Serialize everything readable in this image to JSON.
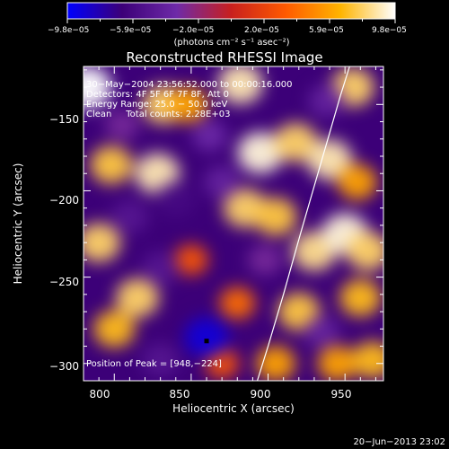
{
  "chart_data": {
    "type": "heatmap",
    "title": "Reconstructed RHESSI Image",
    "xlabel": "Heliocentric X (arcsec)",
    "ylabel": "Heliocentric Y (arcsec)",
    "xlim": [
      780,
      975
    ],
    "ylim": [
      -310,
      -128
    ],
    "x_ticks": [
      800,
      850,
      900,
      950
    ],
    "y_ticks": [
      -150,
      -200,
      -250,
      -300
    ],
    "x_tick_labels": [
      "800",
      "850",
      "900",
      "950"
    ],
    "y_tick_labels": [
      "−150",
      "−200",
      "−250",
      "−300"
    ],
    "colorbar": {
      "range": [
        -9.8e-05,
        9.8e-05
      ],
      "tick_labels": [
        "−9.8e−05",
        "−5.9e−05",
        "−2.0e−05",
        "2.0e−05",
        "5.9e−05",
        "9.8e−05"
      ],
      "unit_label": "(photons cm⁻² s⁻¹ asec⁻²)",
      "colors": [
        "#0000ff",
        "#3c0078",
        "#6e2aa8",
        "#c8201e",
        "#ff5a00",
        "#ffb400",
        "#ffffff"
      ]
    },
    "annotations": [
      "30−May−2004 23:56:52.000 to 00:00:16.000",
      "Detectors: 4F 5F 6F 7F 8F, Att 0",
      "Energy Range: 25.0 − 50.0 keV",
      "Clean     Total counts: 2.28E+03"
    ],
    "peak_label": "Position of Peak = [948,−224]",
    "peak": [
      948,
      -224
    ],
    "marker_point": [
      860,
      -287
    ],
    "limb_curve": [
      [
        893,
        -310
      ],
      [
        900,
        -290
      ],
      [
        910,
        -260
      ],
      [
        921,
        -225
      ],
      [
        934,
        -185
      ],
      [
        947,
        -145
      ],
      [
        953,
        -128
      ]
    ],
    "blobs": [
      {
        "x": 783,
        "y": -140,
        "v": 1.0
      },
      {
        "x": 798,
        "y": -185,
        "v": 0.75
      },
      {
        "x": 790,
        "y": -230,
        "v": 0.8
      },
      {
        "x": 800,
        "y": -280,
        "v": 0.7
      },
      {
        "x": 815,
        "y": -262,
        "v": 0.8
      },
      {
        "x": 828,
        "y": -190,
        "v": 0.9
      },
      {
        "x": 832,
        "y": -150,
        "v": 0.8
      },
      {
        "x": 850,
        "y": -240,
        "v": 0.3
      },
      {
        "x": 848,
        "y": -150,
        "v": 0.6
      },
      {
        "x": 882,
        "y": -138,
        "v": 0.9
      },
      {
        "x": 895,
        "y": -178,
        "v": 0.95
      },
      {
        "x": 885,
        "y": -210,
        "v": 0.8
      },
      {
        "x": 905,
        "y": -215,
        "v": 0.75
      },
      {
        "x": 918,
        "y": -172,
        "v": 0.8
      },
      {
        "x": 940,
        "y": -182,
        "v": 0.9
      },
      {
        "x": 930,
        "y": -235,
        "v": 0.85
      },
      {
        "x": 950,
        "y": -225,
        "v": 0.95
      },
      {
        "x": 965,
        "y": -235,
        "v": 0.8
      },
      {
        "x": 958,
        "y": -195,
        "v": 0.6
      },
      {
        "x": 955,
        "y": -140,
        "v": 0.8
      },
      {
        "x": 960,
        "y": -262,
        "v": 0.7
      },
      {
        "x": 920,
        "y": -270,
        "v": 0.75
      },
      {
        "x": 880,
        "y": -265,
        "v": 0.4
      },
      {
        "x": 905,
        "y": -300,
        "v": 0.6
      },
      {
        "x": 945,
        "y": -300,
        "v": 0.6
      },
      {
        "x": 968,
        "y": -298,
        "v": 0.7
      },
      {
        "x": 870,
        "y": -300,
        "v": 0.3
      },
      {
        "x": 840,
        "y": -205,
        "v": -0.6
      },
      {
        "x": 810,
        "y": -215,
        "v": -0.5
      },
      {
        "x": 870,
        "y": -195,
        "v": -0.4
      },
      {
        "x": 830,
        "y": -245,
        "v": -0.5
      },
      {
        "x": 860,
        "y": -285,
        "v": -0.9
      },
      {
        "x": 830,
        "y": -298,
        "v": -0.5
      },
      {
        "x": 898,
        "y": -240,
        "v": -0.3
      },
      {
        "x": 938,
        "y": -148,
        "v": -0.4
      },
      {
        "x": 935,
        "y": -282,
        "v": -0.4
      },
      {
        "x": 805,
        "y": -162,
        "v": -0.3
      },
      {
        "x": 862,
        "y": -168,
        "v": -0.35
      }
    ]
  },
  "timestamp": "20−Jun−2013 23:02"
}
